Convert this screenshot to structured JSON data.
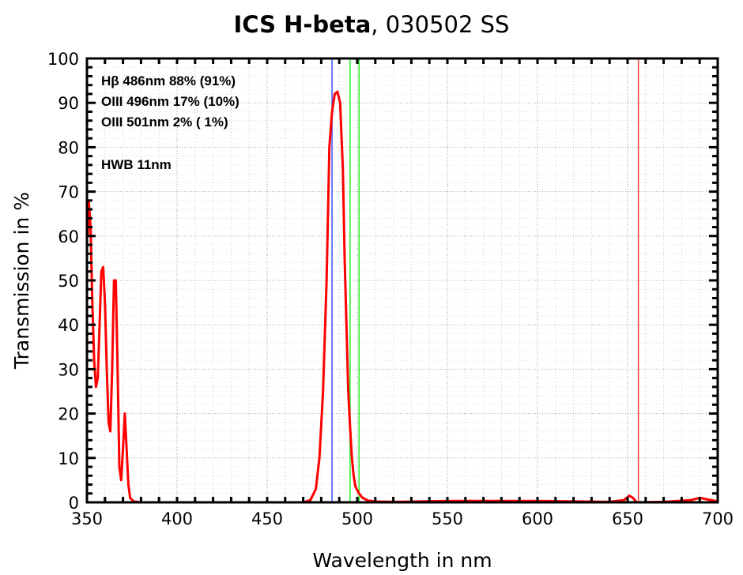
{
  "chart_data": {
    "type": "line",
    "title_bold": "ICS H-beta",
    "title_rest": ", 030502  SS",
    "xlabel": "Wavelength in nm",
    "ylabel": "Transmission in %",
    "xlim": [
      350,
      700
    ],
    "ylim": [
      0,
      100
    ],
    "xticks": [
      350,
      400,
      450,
      500,
      550,
      600,
      650,
      700
    ],
    "yticks": [
      0,
      10,
      20,
      30,
      40,
      50,
      60,
      70,
      80,
      90,
      100
    ],
    "grid": true,
    "annotations": [
      "Hβ  486nm  88%  (91%)",
      "OIII  496nm  17%  (10%)",
      "OIII  501nm   2%  ( 1%)",
      "HWB  11nm"
    ],
    "reference_lines": [
      {
        "name": "H-beta",
        "x": 486,
        "color": "#4a5cff"
      },
      {
        "name": "OIII-496",
        "x": 496,
        "color": "#33ee33"
      },
      {
        "name": "OIII-501",
        "x": 501,
        "color": "#33ee33"
      },
      {
        "name": "H-alpha",
        "x": 656,
        "color": "#ff4444"
      }
    ],
    "series": [
      {
        "name": "transmission",
        "color": "#ff0000",
        "x": [
          350.5,
          351,
          352,
          353,
          354,
          355,
          356,
          357,
          358,
          359,
          360,
          361,
          362,
          363,
          364,
          365,
          366,
          367,
          368,
          369,
          370,
          371,
          372,
          373,
          374,
          376,
          380,
          470,
          474,
          477,
          479,
          481,
          483,
          484.5,
          486,
          487.5,
          489,
          490.5,
          492,
          493,
          494,
          495,
          496,
          497,
          498,
          499,
          501,
          503,
          506,
          510,
          520,
          550,
          600,
          640,
          648,
          651,
          653,
          655,
          670,
          685,
          690,
          695,
          700
        ],
        "y": [
          60,
          68,
          62,
          45,
          32,
          26,
          28,
          40,
          52,
          53,
          45,
          30,
          18,
          16,
          30,
          50,
          50,
          30,
          8,
          5,
          12,
          20,
          12,
          4,
          1,
          0.2,
          0,
          0,
          0.5,
          3,
          10,
          25,
          50,
          80,
          88,
          92,
          92.5,
          90,
          75,
          55,
          40,
          25,
          17,
          10,
          6,
          3.5,
          2,
          1,
          0.4,
          0.2,
          0.1,
          0.3,
          0.3,
          0.1,
          0.5,
          1.5,
          1,
          0,
          0.1,
          0.5,
          1,
          0.6,
          0.2
        ]
      }
    ]
  }
}
